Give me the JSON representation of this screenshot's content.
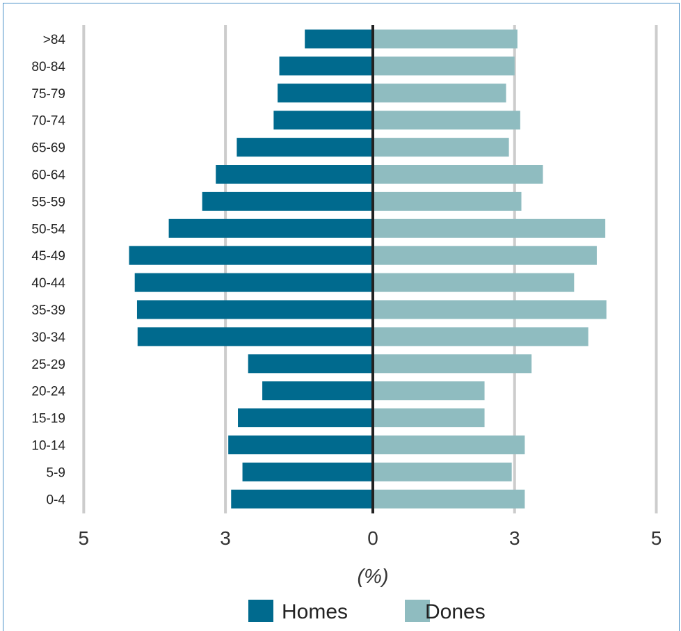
{
  "chart_data": {
    "type": "bar",
    "orientation": "horizontal",
    "subtype": "population-pyramid",
    "categories": [
      ">84",
      "80-84",
      "75-79",
      "70-74",
      "65-69",
      "60-64",
      "55-59",
      "50-54",
      "45-49",
      "40-44",
      "35-39",
      "30-34",
      "25-29",
      "20-24",
      "15-19",
      "10-14",
      "5-9",
      "0-4"
    ],
    "series": [
      {
        "name": "Homes",
        "color": "#006a8e",
        "side": "left",
        "values": [
          1.2,
          1.65,
          1.68,
          1.75,
          2.4,
          2.77,
          3.01,
          3.6,
          4.3,
          4.2,
          4.16,
          4.15,
          2.2,
          1.95,
          2.38,
          2.55,
          2.3,
          2.5
        ]
      },
      {
        "name": "Dones",
        "color": "#8fbcc0",
        "side": "right",
        "values": [
          2.55,
          2.5,
          2.35,
          2.6,
          2.4,
          3.0,
          2.62,
          4.1,
          3.95,
          3.55,
          4.12,
          3.8,
          2.8,
          1.97,
          1.97,
          2.68,
          2.45,
          2.68
        ]
      }
    ],
    "xlim": [
      -5.1,
      5.1
    ],
    "x_ticks": [
      {
        "value": -5.1,
        "label": "5"
      },
      {
        "value": -2.6,
        "label": "3"
      },
      {
        "value": 0,
        "label": "0"
      },
      {
        "value": 2.5,
        "label": "3"
      },
      {
        "value": 5.0,
        "label": "5"
      }
    ],
    "xlabel": "(%)",
    "grid": "vertical",
    "legend": "bottom-center"
  }
}
